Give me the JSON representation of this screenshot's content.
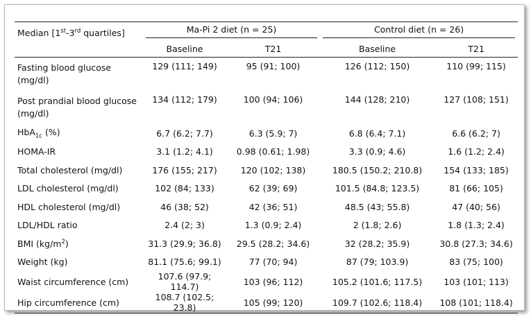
{
  "header": {
    "label_parts": [
      {
        "text": "Median [1"
      },
      {
        "text": "st",
        "pos": "sup"
      },
      {
        "text": "-3"
      },
      {
        "text": "rd",
        "pos": "sup"
      },
      {
        "text": " quartiles]"
      }
    ],
    "groups": [
      "Ma-Pi 2 diet (n = 25)",
      "Control diet (n = 26)"
    ],
    "subheaders": [
      "Baseline",
      "T21",
      "Baseline",
      "T21"
    ]
  },
  "rows": [
    {
      "label_parts": [
        {
          "text": "Fasting blood glucose (mg/dl)"
        }
      ],
      "cells": [
        "129 (111; 149)",
        "95 (91; 100)",
        "126 (112; 150)",
        "110 (99; 115)"
      ]
    },
    {
      "label_parts": [
        {
          "text": "Post prandial blood glucose (mg/dl)"
        }
      ],
      "cells": [
        "134 (112; 179)",
        "100 (94; 106)",
        "144 (128; 210)",
        "127 (108; 151)"
      ]
    },
    {
      "label_parts": [
        {
          "text": "HbA"
        },
        {
          "text": "1c",
          "pos": "sub"
        },
        {
          "text": " (%)"
        }
      ],
      "cells": [
        "6.7 (6.2; 7.7)",
        "6.3 (5.9; 7)",
        "6.8 (6.4; 7.1)",
        "6.6 (6.2; 7)"
      ]
    },
    {
      "label_parts": [
        {
          "text": "HOMA-IR"
        }
      ],
      "cells": [
        "3.1 (1.2; 4.1)",
        "0.98 (0.61; 1.98)",
        "3.3 (0.9; 4.6)",
        "1.6 (1.2; 2.4)"
      ]
    },
    {
      "label_parts": [
        {
          "text": "Total cholesterol (mg/dl)"
        }
      ],
      "cells": [
        "176 (155; 217)",
        "120 (102; 138)",
        "180.5 (150.2; 210.8)",
        "154 (133; 185)"
      ]
    },
    {
      "label_parts": [
        {
          "text": "LDL cholesterol (mg/dl)"
        }
      ],
      "cells": [
        "102 (84; 133)",
        "62 (39; 69)",
        "101.5 (84.8; 123.5)",
        "81 (66; 105)"
      ]
    },
    {
      "label_parts": [
        {
          "text": "HDL cholesterol (mg/dl)"
        }
      ],
      "cells": [
        "46 (38; 52)",
        "42 (36; 51)",
        "48.5 (43; 55.8)",
        "47 (40; 56)"
      ]
    },
    {
      "label_parts": [
        {
          "text": "LDL/HDL ratio"
        }
      ],
      "cells": [
        "2.4 (2; 3)",
        "1.3 (0.9; 2.4)",
        "2 (1.8; 2.6)",
        "1.8 (1.3; 2.4)"
      ]
    },
    {
      "label_parts": [
        {
          "text": "BMI (kg/m"
        },
        {
          "text": "2",
          "pos": "sup"
        },
        {
          "text": ")"
        }
      ],
      "cells": [
        "31.3 (29.9; 36.8)",
        "29.5 (28.2; 34.6)",
        "32 (28.2; 35.9)",
        "30.8 (27.3; 34.6)"
      ]
    },
    {
      "label_parts": [
        {
          "text": "Weight (kg)"
        }
      ],
      "cells": [
        "81.1 (75.6; 99.1)",
        "77 (70; 94)",
        "87 (79; 103.9)",
        "83 (75; 100)"
      ]
    },
    {
      "label_parts": [
        {
          "text": "Waist circumference (cm)"
        }
      ],
      "cells": [
        "107.6 (97.9; 114.7)",
        "103 (96; 112)",
        "105.2 (101.6; 117.5)",
        "103 (101; 113)"
      ]
    },
    {
      "label_parts": [
        {
          "text": "Hip circumference (cm)"
        }
      ],
      "cells": [
        "108.7 (102.5; 23.8)",
        "105 (99; 120)",
        "109.7 (102.6; 118.4)",
        "108 (101; 118.4)"
      ]
    }
  ]
}
